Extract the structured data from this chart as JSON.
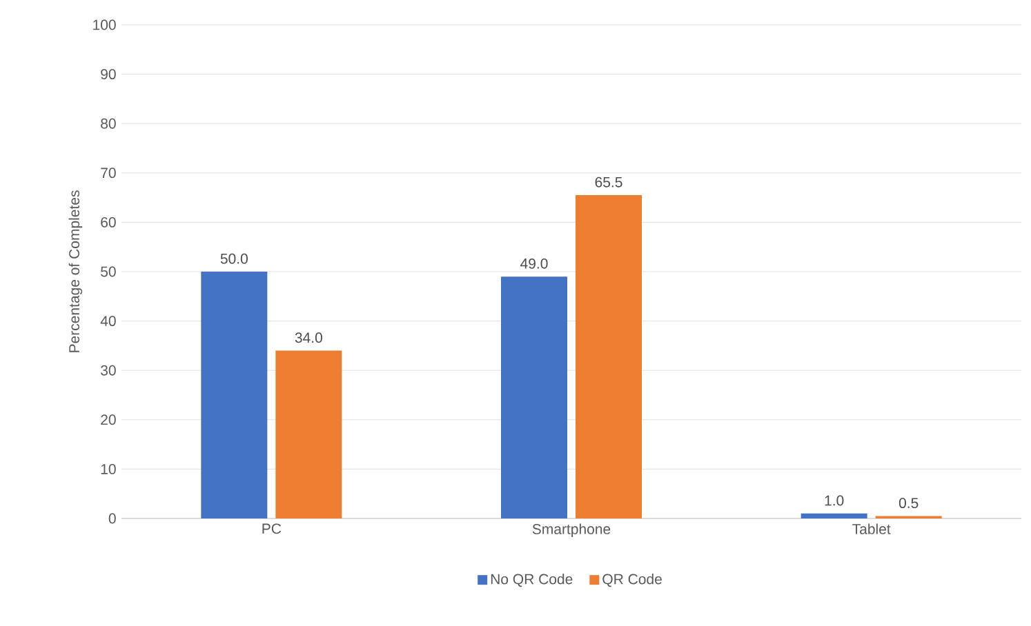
{
  "chart_data": {
    "type": "bar",
    "ylabel": "Percentage of Completes",
    "categories": [
      "PC",
      "Smartphone",
      "Tablet"
    ],
    "series": [
      {
        "name": "No QR Code",
        "color": "#4472c4",
        "values": [
          50.0,
          49.0,
          1.0
        ],
        "value_labels": [
          "50.0",
          "49.0",
          "1.0"
        ]
      },
      {
        "name": "QR Code",
        "color": "#ed7d31",
        "values": [
          34.0,
          65.5,
          0.5
        ],
        "value_labels": [
          "34.0",
          "65.5",
          "0.5"
        ]
      }
    ],
    "ylim": [
      0,
      100
    ],
    "yticks": [
      0,
      10,
      20,
      30,
      40,
      50,
      60,
      70,
      80,
      90,
      100
    ],
    "grid": "y",
    "legend": "bottom"
  }
}
